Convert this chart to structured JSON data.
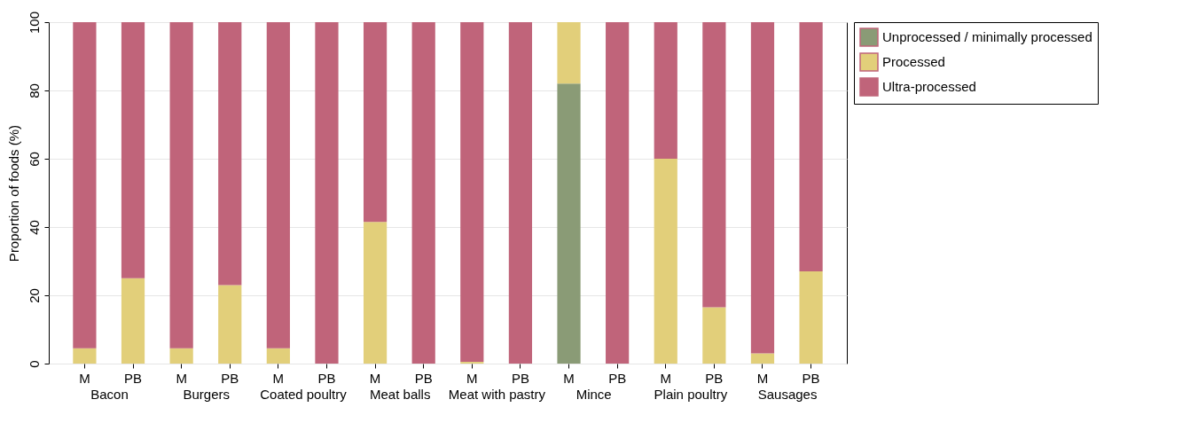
{
  "chart_data": {
    "type": "bar",
    "stacked": true,
    "ylabel": "Proportion of foods (%)",
    "categories": [
      "M",
      "PB",
      "M",
      "PB",
      "M",
      "PB",
      "M",
      "PB",
      "M",
      "PB",
      "M",
      "PB",
      "M",
      "PB",
      "M",
      "PB"
    ],
    "annotations": [
      "Bacon",
      "Burgers",
      "Coated poultry",
      "Meat balls",
      "Meat with pastry",
      "Mince",
      "Plain poultry",
      "Sausages"
    ],
    "series": [
      {
        "name": "Unprocessed / minimally processed",
        "color": "#8a9b76",
        "values": [
          0,
          0,
          0,
          0,
          0,
          0,
          0,
          0,
          0,
          0,
          82,
          0,
          0,
          0,
          0,
          0
        ]
      },
      {
        "name": "Processed",
        "color": "#e2cf7a",
        "values": [
          4.5,
          25,
          4.5,
          23,
          4.5,
          0,
          41.5,
          0,
          0.5,
          0,
          18,
          0,
          60,
          16.5,
          3,
          27
        ]
      },
      {
        "name": "Ultra-processed",
        "color": "#c0647a",
        "values": [
          95.5,
          75,
          95.5,
          77,
          95.5,
          100,
          58.5,
          100,
          99.5,
          100,
          0,
          100,
          40,
          83.5,
          97,
          73
        ]
      }
    ],
    "ylim": [
      0,
      100
    ],
    "yticks": [
      0,
      20,
      40,
      60,
      80,
      100
    ],
    "grid": "y",
    "legend": "right"
  }
}
